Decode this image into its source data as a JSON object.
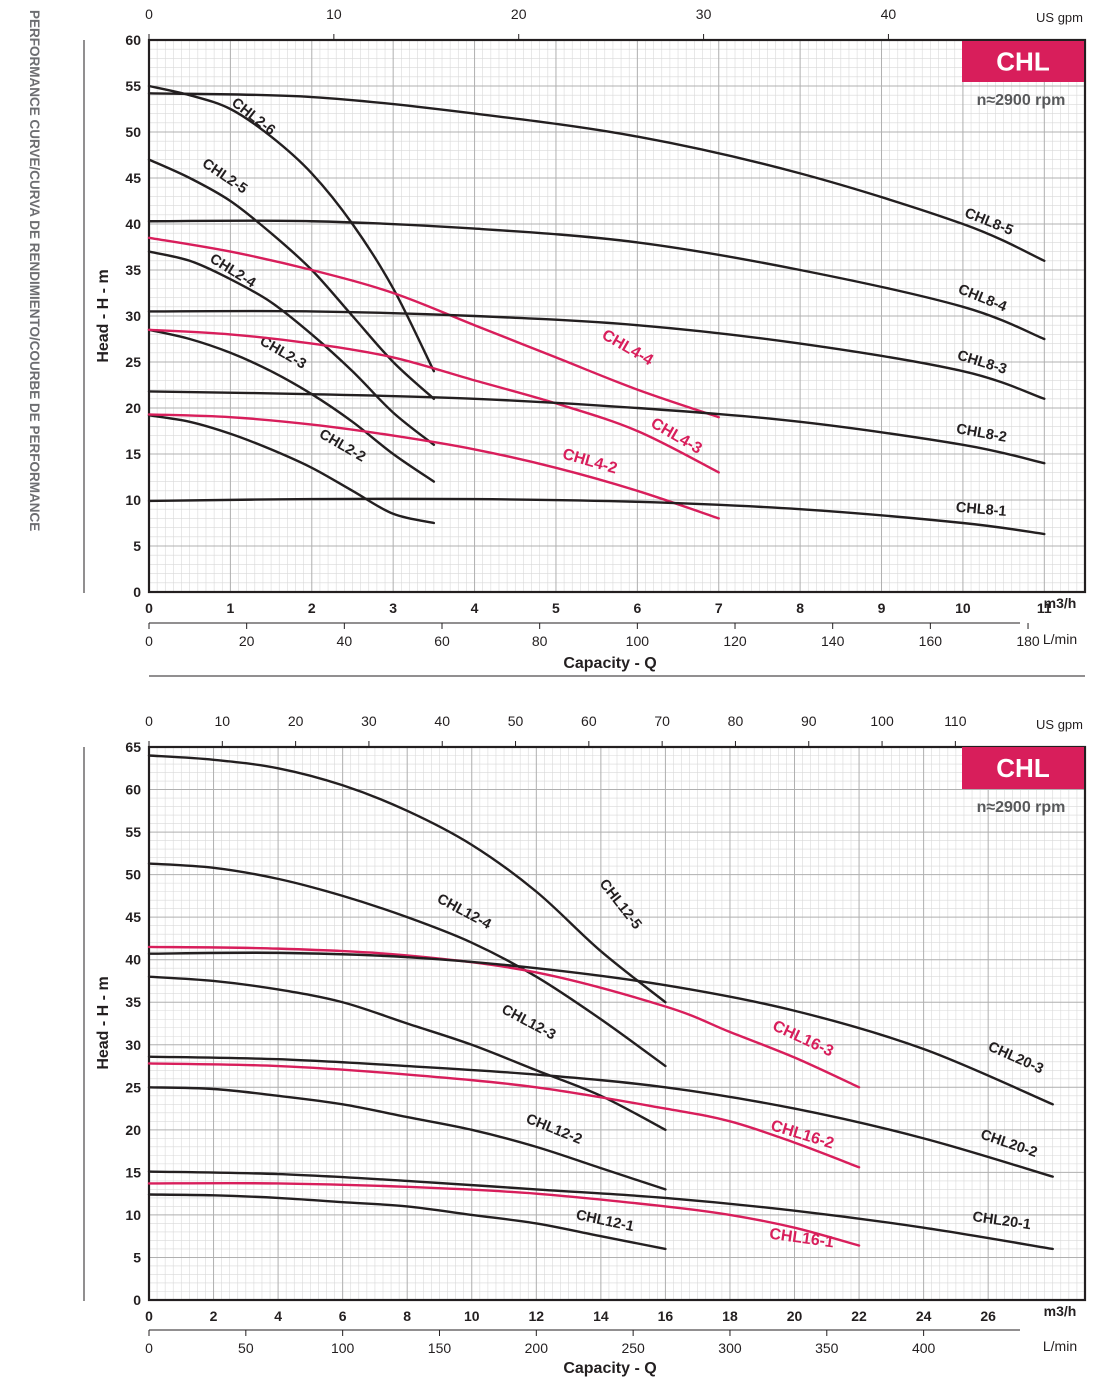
{
  "side_title": "PERFORMANCE CURVE/CURVA DE RENDIMIENTO/COURBE DE PERFORMANCE",
  "colors": {
    "black_curve": "#231f20",
    "red_curve": "#d81e5b",
    "badge": "#d81e5b",
    "grid_major": "#b0b0b0",
    "grid_minor": "#d9d9d9"
  },
  "chart_data": [
    {
      "type": "line",
      "badge": "CHL",
      "speed": "n≈2900 rpm",
      "xlabel": "Capacity - Q",
      "ylabel": "Head  -  H - m",
      "x_unit": "m3/h",
      "x2_unit": "L/min",
      "top_unit": "US gpm",
      "xlim": [
        0,
        11.5
      ],
      "ylim": [
        0,
        60
      ],
      "grid": true,
      "x_ticks": [
        0,
        1,
        2,
        3,
        4,
        5,
        6,
        7,
        8,
        9,
        10,
        11
      ],
      "y_ticks": [
        0,
        5,
        10,
        15,
        20,
        25,
        30,
        35,
        40,
        45,
        50,
        55,
        60
      ],
      "lmin_ticks": [
        0,
        20,
        40,
        60,
        80,
        100,
        120,
        140,
        160,
        180
      ],
      "gpm_ticks": [
        0,
        10,
        20,
        30,
        40
      ],
      "series": [
        {
          "name": "CHL2-6",
          "color": "black",
          "label_at": [
            1.25,
            51.3
          ],
          "label_rot": 38,
          "points": [
            [
              0,
              55
            ],
            [
              0.5,
              54
            ],
            [
              1,
              52.5
            ],
            [
              1.5,
              49.5
            ],
            [
              2,
              45.5
            ],
            [
              2.5,
              40
            ],
            [
              3,
              33
            ],
            [
              3.5,
              24
            ]
          ]
        },
        {
          "name": "CHL2-5",
          "color": "black",
          "label_at": [
            0.9,
            44.8
          ],
          "label_rot": 34,
          "points": [
            [
              0,
              47
            ],
            [
              0.5,
              45
            ],
            [
              1,
              42.5
            ],
            [
              1.5,
              39
            ],
            [
              2,
              35
            ],
            [
              2.5,
              30
            ],
            [
              3,
              25
            ],
            [
              3.5,
              21
            ]
          ]
        },
        {
          "name": "CHL2-4",
          "color": "black",
          "label_at": [
            1.0,
            34.5
          ],
          "label_rot": 32,
          "points": [
            [
              0,
              37
            ],
            [
              0.5,
              36
            ],
            [
              1,
              34
            ],
            [
              1.5,
              31.5
            ],
            [
              2,
              28
            ],
            [
              2.5,
              24
            ],
            [
              3,
              19.5
            ],
            [
              3.5,
              16
            ]
          ]
        },
        {
          "name": "CHL2-3",
          "color": "black",
          "label_at": [
            1.62,
            25.6
          ],
          "label_rot": 30,
          "points": [
            [
              0,
              28.5
            ],
            [
              0.5,
              27.5
            ],
            [
              1,
              26
            ],
            [
              1.5,
              24
            ],
            [
              2,
              21.5
            ],
            [
              2.5,
              18.5
            ],
            [
              3,
              15
            ],
            [
              3.5,
              12
            ]
          ]
        },
        {
          "name": "CHL2-2",
          "color": "black",
          "label_at": [
            2.35,
            15.5
          ],
          "label_rot": 30,
          "points": [
            [
              0,
              19.2
            ],
            [
              0.5,
              18.5
            ],
            [
              1,
              17.2
            ],
            [
              1.5,
              15.5
            ],
            [
              2,
              13.5
            ],
            [
              2.5,
              11
            ],
            [
              3,
              8.5
            ],
            [
              3.5,
              7.5
            ]
          ]
        },
        {
          "name": "CHL4-4",
          "color": "red",
          "label_at": [
            5.85,
            26.1
          ],
          "label_rot": 30,
          "points": [
            [
              0,
              38.5
            ],
            [
              1,
              37
            ],
            [
              2,
              35
            ],
            [
              3,
              32.5
            ],
            [
              4,
              29
            ],
            [
              5,
              25.5
            ],
            [
              6,
              22
            ],
            [
              7,
              19
            ]
          ]
        },
        {
          "name": "CHL4-3",
          "color": "red",
          "label_at": [
            6.45,
            16.5
          ],
          "label_rot": 30,
          "points": [
            [
              0,
              28.5
            ],
            [
              1,
              28
            ],
            [
              2,
              27
            ],
            [
              3,
              25.5
            ],
            [
              4,
              23
            ],
            [
              5,
              20.5
            ],
            [
              6,
              17.5
            ],
            [
              7,
              13
            ]
          ]
        },
        {
          "name": "CHL4-2",
          "color": "red",
          "label_at": [
            5.4,
            13.7
          ],
          "label_rot": 16,
          "points": [
            [
              0,
              19.3
            ],
            [
              1,
              19
            ],
            [
              2,
              18.2
            ],
            [
              3,
              17
            ],
            [
              4,
              15.5
            ],
            [
              5,
              13.5
            ],
            [
              6,
              11
            ],
            [
              7,
              8
            ]
          ]
        },
        {
          "name": "CHL8-5",
          "color": "black",
          "label_at": [
            10.3,
            39.8
          ],
          "label_rot": 22,
          "points": [
            [
              0,
              54.2
            ],
            [
              2,
              53.8
            ],
            [
              4,
              52
            ],
            [
              6,
              49.5
            ],
            [
              8,
              45.5
            ],
            [
              10,
              40
            ],
            [
              11,
              36
            ]
          ]
        },
        {
          "name": "CHL8-4",
          "color": "black",
          "label_at": [
            10.22,
            31.5
          ],
          "label_rot": 22,
          "points": [
            [
              0,
              40.3
            ],
            [
              2,
              40.3
            ],
            [
              4,
              39.5
            ],
            [
              6,
              38
            ],
            [
              8,
              35
            ],
            [
              10,
              31
            ],
            [
              11,
              27.5
            ]
          ]
        },
        {
          "name": "CHL8-3",
          "color": "black",
          "label_at": [
            10.22,
            24.5
          ],
          "label_rot": 17,
          "points": [
            [
              0,
              30.5
            ],
            [
              2,
              30.5
            ],
            [
              4,
              30
            ],
            [
              6,
              29
            ],
            [
              8,
              27
            ],
            [
              10,
              24
            ],
            [
              11,
              21
            ]
          ]
        },
        {
          "name": "CHL8-2",
          "color": "black",
          "label_at": [
            10.22,
            16.8
          ],
          "label_rot": 10,
          "points": [
            [
              0,
              21.8
            ],
            [
              2,
              21.5
            ],
            [
              4,
              21
            ],
            [
              6,
              20
            ],
            [
              8,
              18.5
            ],
            [
              10,
              16
            ],
            [
              11,
              14
            ]
          ]
        },
        {
          "name": "CHL8-1",
          "color": "black",
          "label_at": [
            10.22,
            8.5
          ],
          "label_rot": 5,
          "points": [
            [
              0,
              9.9
            ],
            [
              2,
              10.1
            ],
            [
              4,
              10.1
            ],
            [
              6,
              9.8
            ],
            [
              8,
              9
            ],
            [
              10,
              7.5
            ],
            [
              11,
              6.3
            ]
          ]
        }
      ]
    },
    {
      "type": "line",
      "badge": "CHL",
      "speed": "n≈2900 rpm",
      "xlabel": "Capacity - Q",
      "ylabel": "Head  -  H - m",
      "x_unit": "m3/h",
      "x2_unit": "L/min",
      "top_unit": "US gpm",
      "xlim": [
        0,
        29
      ],
      "ylim": [
        0,
        65
      ],
      "grid": true,
      "x_ticks": [
        0,
        2,
        4,
        6,
        8,
        10,
        12,
        14,
        16,
        18,
        20,
        22,
        24,
        26
      ],
      "y_ticks": [
        0,
        5,
        10,
        15,
        20,
        25,
        30,
        35,
        40,
        45,
        50,
        55,
        60,
        65
      ],
      "lmin_ticks": [
        0,
        50,
        100,
        150,
        200,
        250,
        300,
        350,
        400
      ],
      "gpm_ticks": [
        0,
        10,
        20,
        30,
        40,
        50,
        60,
        70,
        80,
        90,
        100,
        110
      ],
      "series": [
        {
          "name": "CHL12-5",
          "color": "black",
          "label_at": [
            14.5,
            46.2
          ],
          "label_rot": 52,
          "points": [
            [
              0,
              64
            ],
            [
              2,
              63.5
            ],
            [
              4,
              62.5
            ],
            [
              6,
              60.5
            ],
            [
              8,
              57.5
            ],
            [
              10,
              53.5
            ],
            [
              12,
              48
            ],
            [
              14,
              41
            ],
            [
              16,
              35
            ]
          ]
        },
        {
          "name": "CHL12-4",
          "color": "black",
          "label_at": [
            9.7,
            45.2
          ],
          "label_rot": 28,
          "points": [
            [
              0,
              51.3
            ],
            [
              2,
              50.8
            ],
            [
              4,
              49.5
            ],
            [
              6,
              47.5
            ],
            [
              8,
              45
            ],
            [
              10,
              42
            ],
            [
              12,
              38
            ],
            [
              14,
              33
            ],
            [
              16,
              27.5
            ]
          ]
        },
        {
          "name": "CHL12-3",
          "color": "black",
          "label_at": [
            11.7,
            32.2
          ],
          "label_rot": 28,
          "points": [
            [
              0,
              38
            ],
            [
              2,
              37.5
            ],
            [
              4,
              36.5
            ],
            [
              6,
              35
            ],
            [
              8,
              32.5
            ],
            [
              10,
              30
            ],
            [
              12,
              27
            ],
            [
              14,
              24
            ],
            [
              16,
              20
            ]
          ]
        },
        {
          "name": "CHL12-2",
          "color": "black",
          "label_at": [
            12.5,
            19.6
          ],
          "label_rot": 22,
          "points": [
            [
              0,
              25
            ],
            [
              2,
              24.8
            ],
            [
              4,
              24
            ],
            [
              6,
              23
            ],
            [
              8,
              21.5
            ],
            [
              10,
              20
            ],
            [
              12,
              18
            ],
            [
              14,
              15.5
            ],
            [
              16,
              13
            ]
          ]
        },
        {
          "name": "CHL12-1",
          "color": "black",
          "label_at": [
            14.1,
            8.8
          ],
          "label_rot": 12,
          "points": [
            [
              0,
              12.4
            ],
            [
              2,
              12.3
            ],
            [
              4,
              12
            ],
            [
              6,
              11.5
            ],
            [
              8,
              11
            ],
            [
              10,
              10
            ],
            [
              12,
              9
            ],
            [
              14,
              7.5
            ],
            [
              16,
              6
            ]
          ]
        },
        {
          "name": "CHL16-3",
          "color": "red",
          "label_at": [
            20.2,
            30.2
          ],
          "label_rot": 25,
          "points": [
            [
              0,
              41.5
            ],
            [
              4,
              41.3
            ],
            [
              8,
              40.5
            ],
            [
              12,
              38.5
            ],
            [
              16,
              34.5
            ],
            [
              18,
              31.5
            ],
            [
              20,
              28.5
            ],
            [
              22,
              25
            ]
          ]
        },
        {
          "name": "CHL16-2",
          "color": "red",
          "label_at": [
            20.2,
            18.9
          ],
          "label_rot": 17,
          "points": [
            [
              0,
              27.8
            ],
            [
              4,
              27.5
            ],
            [
              8,
              26.5
            ],
            [
              12,
              25
            ],
            [
              16,
              22.5
            ],
            [
              18,
              21
            ],
            [
              20,
              18.5
            ],
            [
              22,
              15.6
            ]
          ]
        },
        {
          "name": "CHL16-1",
          "color": "red",
          "label_at": [
            20.2,
            6.7
          ],
          "label_rot": 8,
          "points": [
            [
              0,
              13.7
            ],
            [
              4,
              13.7
            ],
            [
              8,
              13.3
            ],
            [
              12,
              12.5
            ],
            [
              16,
              11
            ],
            [
              18,
              10
            ],
            [
              20,
              8.5
            ],
            [
              22,
              6.4
            ]
          ]
        },
        {
          "name": "CHL20-3",
          "color": "black",
          "label_at": [
            26.8,
            28.0
          ],
          "label_rot": 24,
          "points": [
            [
              0,
              40.7
            ],
            [
              4,
              40.8
            ],
            [
              8,
              40.3
            ],
            [
              12,
              39
            ],
            [
              16,
              37
            ],
            [
              20,
              34
            ],
            [
              24,
              29.5
            ],
            [
              28,
              23
            ]
          ]
        },
        {
          "name": "CHL20-2",
          "color": "black",
          "label_at": [
            26.6,
            17.9
          ],
          "label_rot": 19,
          "points": [
            [
              0,
              28.6
            ],
            [
              4,
              28.3
            ],
            [
              8,
              27.5
            ],
            [
              12,
              26.5
            ],
            [
              16,
              25
            ],
            [
              20,
              22.5
            ],
            [
              24,
              19
            ],
            [
              28,
              14.5
            ]
          ]
        },
        {
          "name": "CHL20-1",
          "color": "black",
          "label_at": [
            26.4,
            8.8
          ],
          "label_rot": 8,
          "points": [
            [
              0,
              15.1
            ],
            [
              4,
              14.8
            ],
            [
              8,
              14
            ],
            [
              12,
              13
            ],
            [
              16,
              12
            ],
            [
              20,
              10.5
            ],
            [
              24,
              8.5
            ],
            [
              28,
              6
            ]
          ]
        }
      ]
    }
  ]
}
